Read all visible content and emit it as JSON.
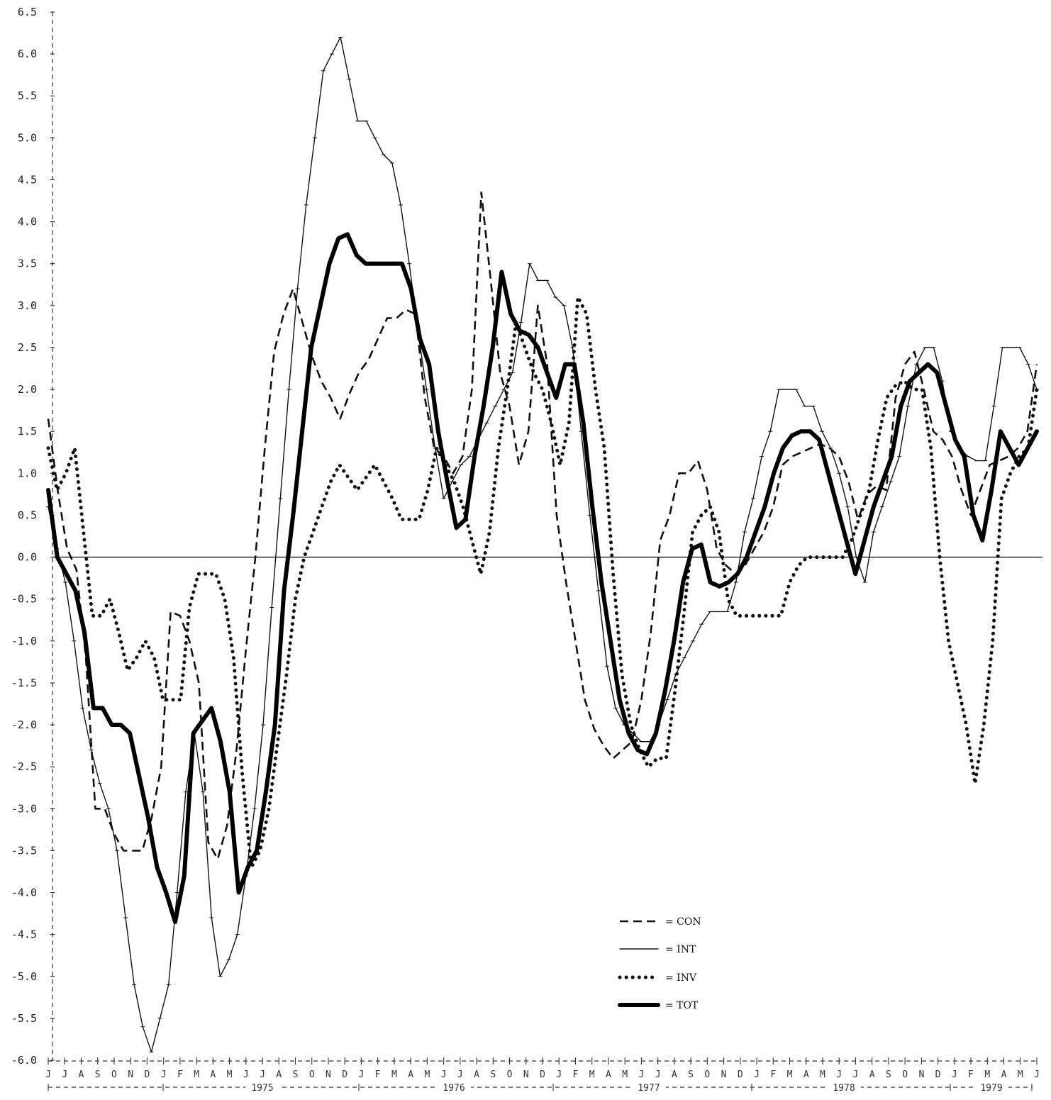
{
  "chart_data": {
    "type": "line",
    "ylim": [
      -6.0,
      6.5
    ],
    "y_ticks": [
      "6.5",
      "6.0",
      "5.5",
      "5.0",
      "4.5",
      "4.0",
      "3.5",
      "3.0",
      "2.5",
      "2.0",
      "1.5",
      "1.0",
      "0.5",
      "0.0",
      "-0.5",
      "-1.0",
      "-1.5",
      "-2.0",
      "-2.5",
      "-3.0",
      "-3.5",
      "-4.0",
      "-4.5",
      "-5.0",
      "-5.5",
      "-6.0"
    ],
    "month_labels": [
      "J",
      "J",
      "A",
      "S",
      "O",
      "N",
      "D",
      "J",
      "F",
      "M",
      "A",
      "M",
      "J",
      "J",
      "A",
      "S",
      "O",
      "N",
      "D",
      "J",
      "F",
      "M",
      "A",
      "M",
      "J",
      "J",
      "A",
      "S",
      "O",
      "N",
      "D",
      "J",
      "F",
      "M",
      "A",
      "M",
      "J",
      "J",
      "A",
      "S",
      "O",
      "N",
      "D",
      "J",
      "F",
      "M",
      "A",
      "M",
      "J",
      "J",
      "A",
      "S",
      "O",
      "N",
      "D",
      "J",
      "F",
      "M",
      "A",
      "M",
      "J"
    ],
    "year_labels": [
      "1975",
      "1976",
      "1977",
      "1978",
      "1979"
    ],
    "zero_line": true,
    "legend_position": "bottom-right",
    "series": [
      {
        "name": "CON",
        "legend_label": "= CON",
        "style": "dashed",
        "color": "#111111",
        "values": [
          1.65,
          0.8,
          0.1,
          -0.15,
          -1.2,
          -3.0,
          -3.0,
          -3.3,
          -3.5,
          -3.5,
          -3.5,
          -3.1,
          -2.5,
          -0.65,
          -0.7,
          -1.0,
          -1.5,
          -3.4,
          -3.6,
          -3.2,
          -2.3,
          -1.1,
          0.0,
          1.3,
          2.45,
          2.9,
          3.2,
          2.8,
          2.4,
          2.1,
          1.9,
          1.65,
          1.95,
          2.2,
          2.35,
          2.6,
          2.85,
          2.85,
          2.95,
          2.9,
          1.9,
          1.3,
          1.2,
          1.0,
          1.2,
          2.0,
          4.35,
          3.3,
          2.2,
          1.8,
          1.1,
          1.5,
          3.0,
          2.3,
          0.5,
          -0.3,
          -1.0,
          -1.7,
          -2.05,
          -2.25,
          -2.4,
          -2.3,
          -2.2,
          -1.7,
          -0.9,
          0.2,
          0.5,
          1.0,
          1.0,
          1.15,
          0.8,
          0.1,
          -0.1,
          -0.2,
          -0.1,
          0.1,
          0.3,
          0.6,
          1.1,
          1.2,
          1.25,
          1.3,
          1.35,
          1.3,
          1.2,
          0.9,
          0.45,
          0.75,
          0.85,
          0.8,
          1.9,
          2.3,
          2.45,
          2.0,
          1.5,
          1.4,
          1.2,
          0.8,
          0.5,
          0.8,
          1.1,
          1.15,
          1.2,
          1.3,
          1.5,
          2.3
        ]
      },
      {
        "name": "INT",
        "legend_label": "= INT",
        "style": "solid-thin",
        "color": "#111111",
        "values": [
          0.6,
          0.1,
          -0.3,
          -1.0,
          -1.8,
          -2.3,
          -2.7,
          -3.0,
          -3.5,
          -4.3,
          -5.1,
          -5.6,
          -5.9,
          -5.5,
          -5.1,
          -4.0,
          -2.8,
          -2.1,
          -2.8,
          -4.3,
          -5.0,
          -4.8,
          -4.5,
          -3.8,
          -3.0,
          -2.0,
          -0.6,
          0.7,
          2.0,
          3.2,
          4.2,
          5.0,
          5.8,
          6.0,
          6.2,
          5.7,
          5.2,
          5.2,
          5.0,
          4.8,
          4.7,
          4.2,
          3.5,
          2.7,
          2.0,
          1.3,
          0.7,
          0.9,
          1.1,
          1.2,
          1.4,
          1.6,
          1.8,
          2.0,
          2.2,
          2.8,
          3.5,
          3.3,
          3.3,
          3.1,
          3.0,
          2.5,
          1.5,
          0.5,
          -0.4,
          -1.3,
          -1.8,
          -2.0,
          -2.1,
          -2.2,
          -2.2,
          -2.0,
          -1.7,
          -1.4,
          -1.2,
          -1.0,
          -0.8,
          -0.65,
          -0.65,
          -0.65,
          -0.3,
          0.3,
          0.7,
          1.2,
          1.5,
          2.0,
          2.0,
          2.0,
          1.8,
          1.8,
          1.5,
          1.3,
          1.0,
          0.6,
          0.0,
          -0.3,
          0.3,
          0.6,
          0.9,
          1.2,
          1.8,
          2.3,
          2.5,
          2.5,
          2.1,
          1.5,
          1.3,
          1.2,
          1.15,
          1.15,
          1.8,
          2.5,
          2.5,
          2.5,
          2.3,
          2.0
        ]
      },
      {
        "name": "INV",
        "legend_label": "= INV",
        "style": "dotted",
        "color": "#111111",
        "values": [
          1.3,
          0.8,
          1.0,
          1.3,
          0.3,
          -0.7,
          -0.7,
          -0.5,
          -0.9,
          -1.35,
          -1.2,
          -1.0,
          -1.2,
          -1.7,
          -1.7,
          -1.7,
          -0.6,
          -0.2,
          -0.2,
          -0.2,
          -0.5,
          -1.2,
          -2.6,
          -3.7,
          -3.5,
          -3.0,
          -2.2,
          -1.4,
          -0.5,
          0.0,
          0.3,
          0.6,
          0.9,
          1.1,
          0.95,
          0.8,
          0.95,
          1.1,
          0.9,
          0.7,
          0.45,
          0.45,
          0.45,
          0.8,
          1.3,
          1.1,
          0.9,
          0.6,
          0.2,
          -0.2,
          0.3,
          1.3,
          2.0,
          2.8,
          2.5,
          2.2,
          2.0,
          1.6,
          1.1,
          1.6,
          3.1,
          2.9,
          2.0,
          1.3,
          -0.2,
          -1.4,
          -2.0,
          -2.3,
          -2.5,
          -2.4,
          -2.4,
          -1.6,
          -0.7,
          0.3,
          0.5,
          0.6,
          0.3,
          -0.5,
          -0.7,
          -0.7,
          -0.7,
          -0.7,
          -0.7,
          -0.7,
          -0.3,
          -0.1,
          0.0,
          0.0,
          0.0,
          0.0,
          0.0,
          0.2,
          0.5,
          0.8,
          1.4,
          1.9,
          2.05,
          2.1,
          2.0,
          2.0,
          1.3,
          0.0,
          -1.0,
          -1.5,
          -2.0,
          -2.7,
          -2.0,
          -1.0,
          0.7,
          1.0,
          1.2,
          1.3,
          2.0
        ]
      },
      {
        "name": "TOT",
        "legend_label": "= TOT",
        "style": "solid-thick",
        "color": "#000000",
        "values": [
          0.8,
          0.0,
          -0.2,
          -0.4,
          -0.9,
          -1.8,
          -1.8,
          -2.0,
          -2.0,
          -2.1,
          -2.6,
          -3.1,
          -3.7,
          -4.0,
          -4.35,
          -3.8,
          -2.1,
          -1.95,
          -1.8,
          -2.2,
          -2.8,
          -4.0,
          -3.7,
          -3.5,
          -2.8,
          -2.0,
          -0.4,
          0.5,
          1.5,
          2.5,
          3.0,
          3.5,
          3.8,
          3.85,
          3.6,
          3.5,
          3.5,
          3.5,
          3.5,
          3.5,
          3.2,
          2.6,
          2.3,
          1.5,
          0.9,
          0.35,
          0.45,
          1.2,
          1.8,
          2.5,
          3.4,
          2.9,
          2.7,
          2.65,
          2.5,
          2.2,
          1.9,
          2.3,
          2.3,
          1.6,
          0.6,
          -0.3,
          -1.0,
          -1.7,
          -2.1,
          -2.3,
          -2.35,
          -2.1,
          -1.6,
          -1.0,
          -0.3,
          0.1,
          0.15,
          -0.3,
          -0.35,
          -0.3,
          -0.2,
          0.0,
          0.3,
          0.6,
          1.0,
          1.3,
          1.45,
          1.5,
          1.5,
          1.4,
          1.0,
          0.6,
          0.2,
          -0.2,
          0.2,
          0.6,
          0.9,
          1.2,
          1.8,
          2.1,
          2.2,
          2.3,
          2.2,
          1.8,
          1.4,
          1.2,
          0.5,
          0.2,
          0.8,
          1.5,
          1.3,
          1.1,
          1.3,
          1.5
        ]
      }
    ]
  }
}
